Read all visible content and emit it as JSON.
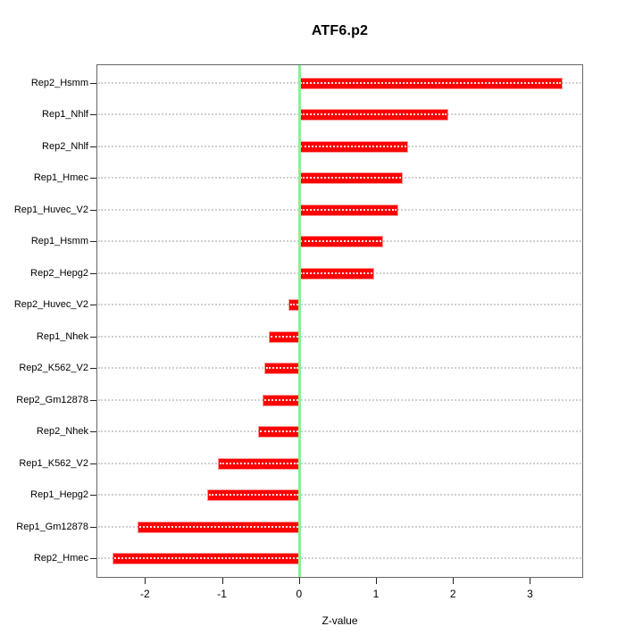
{
  "title": "ATF6.p2",
  "x_axis_label": "Z-value",
  "colors": {
    "bar": "#ff0000",
    "zero_line": "#90ee90",
    "gridline": "#cfcfcf",
    "box_border": "#666666",
    "text": "#000000",
    "background": "#ffffff"
  },
  "chart_data": {
    "type": "bar",
    "orientation": "horizontal",
    "title": "ATF6.p2",
    "xlabel": "Z-value",
    "ylabel": "",
    "categories": [
      "Rep2_Hsmm",
      "Rep1_Nhlf",
      "Rep2_Nhlf",
      "Rep1_Hmec",
      "Rep1_Huvec_V2",
      "Rep1_Hsmm",
      "Rep2_Hepg2",
      "Rep2_Huvec_V2",
      "Rep1_Nhek",
      "Rep2_K562_V2",
      "Rep2_Gm12878",
      "Rep2_Nhek",
      "Rep1_K562_V2",
      "Rep1_Hepg2",
      "Rep1_Gm12878",
      "Rep2_Hmec"
    ],
    "values": [
      3.41,
      1.93,
      1.4,
      1.34,
      1.28,
      1.08,
      0.97,
      -0.12,
      -0.38,
      -0.44,
      -0.46,
      -0.52,
      -1.04,
      -1.18,
      -2.08,
      -2.41
    ],
    "xticks": [
      -2,
      -1,
      0,
      1,
      2,
      3
    ],
    "xlim": [
      -2.63,
      3.69
    ],
    "zero_reference_line": 0,
    "grid": "horizontal-dotted",
    "legend": "none",
    "bar_color": "#ff0000",
    "zero_line_color": "#90ee90"
  }
}
